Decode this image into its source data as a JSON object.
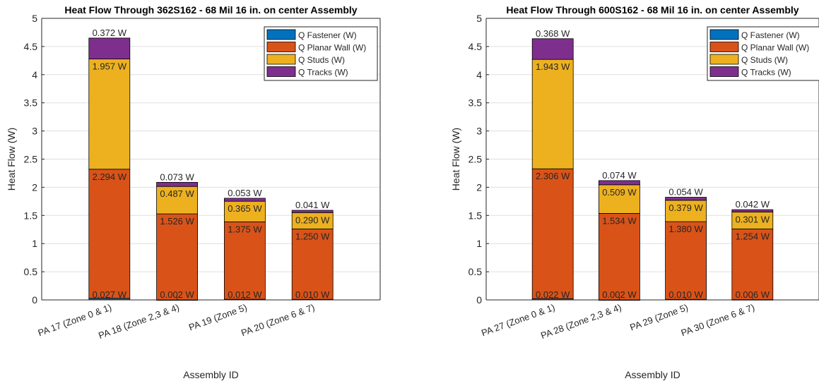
{
  "chart_data": [
    {
      "type": "bar",
      "stacked": true,
      "title": "Heat Flow Through 362S162 - 68 Mil 16 in. on center Assembly",
      "xlabel": "Assembly ID",
      "ylabel": "Heat Flow (W)",
      "ylim": [
        0,
        5
      ],
      "yticks": [
        "0",
        "0.5",
        "1",
        "1.5",
        "2",
        "2.5",
        "3",
        "3.5",
        "4",
        "4.5",
        "5"
      ],
      "grid": true,
      "legend_position": "top-right",
      "categories": [
        "PA 17 (Zone 0 & 1)",
        "PA 18 (Zone 2,3 & 4)",
        "PA 19 (Zone 5)",
        "PA 20 (Zone 6 & 7)"
      ],
      "series": [
        {
          "name": "Q Fastener (W)",
          "color": "#0072BD",
          "values": [
            0.027,
            0.002,
            0.012,
            0.01
          ],
          "labels": [
            "0.027 W",
            "0.002 W",
            "0.012 W",
            "0.010 W"
          ]
        },
        {
          "name": "Q Planar Wall (W)",
          "color": "#D95319",
          "values": [
            2.294,
            1.526,
            1.375,
            1.25
          ],
          "labels": [
            "2.294 W",
            "1.526 W",
            "1.375 W",
            "1.250 W"
          ]
        },
        {
          "name": "Q Studs (W)",
          "color": "#EDB120",
          "values": [
            1.957,
            0.487,
            0.365,
            0.29
          ],
          "labels": [
            "1.957 W",
            "0.487 W",
            "0.365 W",
            "0.290 W"
          ]
        },
        {
          "name": "Q Tracks (W)",
          "color": "#7E2F8E",
          "values": [
            0.372,
            0.073,
            0.053,
            0.041
          ],
          "labels": [
            "0.372 W",
            "0.073 W",
            "0.053 W",
            "0.041 W"
          ]
        }
      ]
    },
    {
      "type": "bar",
      "stacked": true,
      "title": "Heat Flow Through 600S162 - 68 Mil 16 in. on center Assembly",
      "xlabel": "Assembly ID",
      "ylabel": "Heat Flow (W)",
      "ylim": [
        0,
        5
      ],
      "yticks": [
        "0",
        "0.5",
        "1",
        "1.5",
        "2",
        "2.5",
        "3",
        "3.5",
        "4",
        "4.5",
        "5"
      ],
      "grid": true,
      "legend_position": "top-right",
      "categories": [
        "PA 27 (Zone 0 & 1)",
        "PA 28 (Zone 2,3 & 4)",
        "PA 29 (Zone 5)",
        "PA 30 (Zone 6 & 7)"
      ],
      "series": [
        {
          "name": "Q Fastener (W)",
          "color": "#0072BD",
          "values": [
            0.022,
            0.002,
            0.01,
            0.006
          ],
          "labels": [
            "0.022 W",
            "0.002 W",
            "0.010 W",
            "0.006 W"
          ]
        },
        {
          "name": "Q Planar Wall (W)",
          "color": "#D95319",
          "values": [
            2.306,
            1.534,
            1.38,
            1.254
          ],
          "labels": [
            "2.306 W",
            "1.534 W",
            "1.380 W",
            "1.254 W"
          ]
        },
        {
          "name": "Q Studs (W)",
          "color": "#EDB120",
          "values": [
            1.943,
            0.509,
            0.379,
            0.301
          ],
          "labels": [
            "1.943 W",
            "0.509 W",
            "0.379 W",
            "0.301 W"
          ]
        },
        {
          "name": "Q Tracks (W)",
          "color": "#7E2F8E",
          "values": [
            0.368,
            0.074,
            0.054,
            0.042
          ],
          "labels": [
            "0.368 W",
            "0.074 W",
            "0.054 W",
            "0.042 W"
          ]
        }
      ]
    }
  ]
}
